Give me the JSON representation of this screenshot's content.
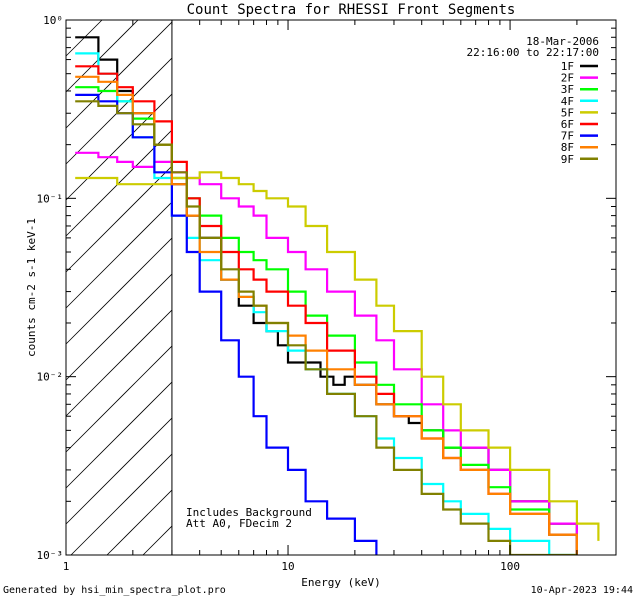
{
  "chart_data": {
    "type": "line",
    "title": "Count Spectra for RHESSI Front Segments",
    "date": "18-Mar-2006",
    "time_range": "22:16:00 to 22:17:00",
    "xlabel": "Energy (keV)",
    "ylabel": "counts cm-2 s-1 keV-1",
    "xscale": "log",
    "yscale": "log",
    "xlim": [
      1,
      300
    ],
    "ylim": [
      0.001,
      1
    ],
    "x_ticks": [
      {
        "value": 1,
        "label": "1"
      },
      {
        "value": 10,
        "label": "10"
      },
      {
        "value": 100,
        "label": "100"
      }
    ],
    "y_ticks": [
      {
        "value": 1,
        "label": "10⁰"
      },
      {
        "value": 0.1,
        "label": "10⁻¹"
      },
      {
        "value": 0.01,
        "label": "10⁻²"
      },
      {
        "value": 0.001,
        "label": "10⁻³"
      }
    ],
    "shaded_region_upper_energy": 3,
    "annotations": [
      "Includes Background",
      "Att A0, FDecim 2"
    ],
    "series": [
      {
        "name": "1F",
        "color": "#000000",
        "x": [
          1.1,
          1.4,
          1.7,
          2,
          2.5,
          3,
          3.5,
          4,
          5,
          6,
          7,
          8,
          9,
          10,
          12,
          14,
          16,
          18,
          20,
          25,
          30,
          35,
          40,
          50,
          60,
          80,
          100,
          150,
          200
        ],
        "y": [
          0.8,
          0.6,
          0.4,
          0.3,
          0.2,
          0.12,
          0.08,
          0.06,
          0.035,
          0.025,
          0.02,
          0.018,
          0.015,
          0.012,
          0.012,
          0.01,
          0.009,
          0.01,
          0.009,
          0.007,
          0.006,
          0.0055,
          0.005,
          0.004,
          0.004,
          0.003,
          0.002,
          0.0015,
          0.001
        ]
      },
      {
        "name": "2F",
        "color": "#ff00ff",
        "x": [
          1.1,
          1.4,
          1.7,
          2,
          2.5,
          3,
          3.5,
          4,
          5,
          6,
          7,
          8,
          10,
          12,
          15,
          20,
          25,
          30,
          40,
          50,
          60,
          80,
          100,
          150,
          200
        ],
        "y": [
          0.18,
          0.17,
          0.16,
          0.15,
          0.16,
          0.14,
          0.13,
          0.12,
          0.1,
          0.09,
          0.08,
          0.06,
          0.05,
          0.04,
          0.03,
          0.022,
          0.016,
          0.011,
          0.007,
          0.005,
          0.004,
          0.003,
          0.002,
          0.0015,
          0.001
        ]
      },
      {
        "name": "3F",
        "color": "#00ff00",
        "x": [
          1.1,
          1.4,
          1.7,
          2,
          2.5,
          3,
          3.5,
          4,
          5,
          6,
          7,
          8,
          10,
          12,
          15,
          20,
          25,
          30,
          40,
          50,
          60,
          80,
          100,
          150,
          200
        ],
        "y": [
          0.42,
          0.4,
          0.35,
          0.28,
          0.2,
          0.13,
          0.1,
          0.08,
          0.06,
          0.05,
          0.045,
          0.04,
          0.03,
          0.022,
          0.017,
          0.012,
          0.009,
          0.007,
          0.005,
          0.004,
          0.0032,
          0.0024,
          0.0018,
          0.0013,
          0.001
        ]
      },
      {
        "name": "4F",
        "color": "#00ffff",
        "x": [
          1.1,
          1.4,
          1.7,
          2,
          2.5,
          3,
          3.5,
          4,
          5,
          6,
          7,
          8,
          10,
          12,
          15,
          20,
          25,
          30,
          40,
          50,
          60,
          80,
          100,
          150,
          200
        ],
        "y": [
          0.65,
          0.5,
          0.35,
          0.22,
          0.13,
          0.08,
          0.06,
          0.045,
          0.035,
          0.028,
          0.023,
          0.018,
          0.014,
          0.011,
          0.008,
          0.006,
          0.0045,
          0.0035,
          0.0025,
          0.002,
          0.0017,
          0.0014,
          0.0012,
          0.001,
          0.001
        ]
      },
      {
        "name": "5F",
        "color": "#cccc00",
        "x": [
          1.1,
          1.4,
          1.7,
          2,
          2.5,
          3,
          4,
          5,
          6,
          7,
          8,
          10,
          12,
          15,
          20,
          25,
          30,
          40,
          50,
          60,
          80,
          100,
          150,
          200,
          250
        ],
        "y": [
          0.13,
          0.13,
          0.12,
          0.12,
          0.12,
          0.13,
          0.14,
          0.13,
          0.12,
          0.11,
          0.1,
          0.09,
          0.07,
          0.05,
          0.035,
          0.025,
          0.018,
          0.01,
          0.007,
          0.005,
          0.004,
          0.003,
          0.002,
          0.0015,
          0.0012
        ]
      },
      {
        "name": "6F",
        "color": "#ff0000",
        "x": [
          1.1,
          1.4,
          1.7,
          2,
          2.5,
          3,
          3.5,
          4,
          5,
          6,
          7,
          8,
          10,
          12,
          15,
          20,
          25,
          30,
          40,
          50,
          60,
          80,
          100,
          150,
          200
        ],
        "y": [
          0.55,
          0.5,
          0.42,
          0.35,
          0.27,
          0.16,
          0.1,
          0.07,
          0.05,
          0.04,
          0.035,
          0.03,
          0.025,
          0.02,
          0.014,
          0.01,
          0.008,
          0.006,
          0.0045,
          0.0035,
          0.003,
          0.0022,
          0.0017,
          0.0013,
          0.001
        ]
      },
      {
        "name": "7F",
        "color": "#0000ff",
        "x": [
          1.1,
          1.4,
          1.7,
          2,
          2.5,
          3,
          3.5,
          4,
          5,
          6,
          7,
          8,
          10,
          12,
          15,
          20,
          25
        ],
        "y": [
          0.38,
          0.35,
          0.3,
          0.22,
          0.14,
          0.08,
          0.05,
          0.03,
          0.016,
          0.01,
          0.006,
          0.004,
          0.003,
          0.002,
          0.0016,
          0.0012,
          0.001
        ]
      },
      {
        "name": "8F",
        "color": "#ff8000",
        "x": [
          1.1,
          1.4,
          1.7,
          2,
          2.5,
          3,
          3.5,
          4,
          5,
          6,
          7,
          8,
          10,
          12,
          15,
          20,
          25,
          30,
          40,
          50,
          60,
          80,
          100,
          150,
          200
        ],
        "y": [
          0.48,
          0.45,
          0.38,
          0.3,
          0.2,
          0.12,
          0.08,
          0.05,
          0.035,
          0.028,
          0.025,
          0.02,
          0.017,
          0.014,
          0.011,
          0.009,
          0.007,
          0.006,
          0.0045,
          0.0035,
          0.003,
          0.0022,
          0.0017,
          0.0013,
          0.001
        ]
      },
      {
        "name": "9F",
        "color": "#808000",
        "x": [
          1.1,
          1.4,
          1.7,
          2,
          2.5,
          3,
          3.5,
          4,
          5,
          6,
          7,
          8,
          10,
          12,
          15,
          20,
          25,
          30,
          40,
          50,
          60,
          80,
          100,
          150,
          200
        ],
        "y": [
          0.35,
          0.33,
          0.3,
          0.26,
          0.2,
          0.14,
          0.09,
          0.06,
          0.04,
          0.03,
          0.025,
          0.02,
          0.015,
          0.011,
          0.008,
          0.006,
          0.004,
          0.003,
          0.0022,
          0.0018,
          0.0015,
          0.0012,
          0.001,
          0.001,
          0.001
        ]
      }
    ]
  },
  "footer": {
    "left": "Generated by hsi_min_spectra_plot.pro",
    "right": "10-Apr-2023 19:44"
  }
}
